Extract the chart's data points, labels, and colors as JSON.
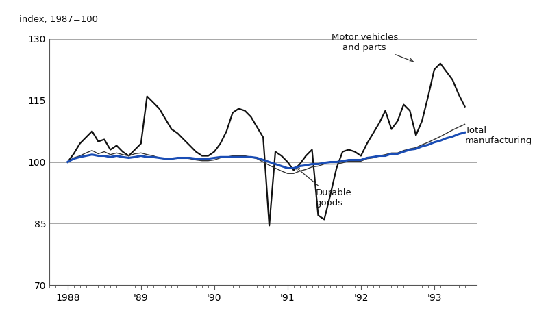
{
  "ylabel": "index, 1987=100",
  "ylim": [
    70,
    130
  ],
  "yticks": [
    70,
    85,
    100,
    115,
    130
  ],
  "xlim": [
    1987.75,
    1993.58
  ],
  "xtick_labels": [
    "1988",
    "'89",
    "'90",
    "'91",
    "'92",
    "'93"
  ],
  "xtick_positions": [
    1988,
    1989,
    1990,
    1991,
    1992,
    1993
  ],
  "background_color": "#ffffff",
  "total_mfg_color": "#1a4db5",
  "durable_color": "#333333",
  "motor_color": "#111111",
  "total_mfg_linewidth": 2.2,
  "durable_linewidth": 1.0,
  "motor_linewidth": 1.6,
  "total_manufacturing": {
    "t": [
      1988.0,
      1988.083,
      1988.167,
      1988.25,
      1988.333,
      1988.417,
      1988.5,
      1988.583,
      1988.667,
      1988.75,
      1988.833,
      1988.917,
      1989.0,
      1989.083,
      1989.167,
      1989.25,
      1989.333,
      1989.417,
      1989.5,
      1989.583,
      1989.667,
      1989.75,
      1989.833,
      1989.917,
      1990.0,
      1990.083,
      1990.167,
      1990.25,
      1990.333,
      1990.417,
      1990.5,
      1990.583,
      1990.667,
      1990.75,
      1990.833,
      1990.917,
      1991.0,
      1991.083,
      1991.167,
      1991.25,
      1991.333,
      1991.417,
      1991.5,
      1991.583,
      1991.667,
      1991.75,
      1991.833,
      1991.917,
      1992.0,
      1992.083,
      1992.167,
      1992.25,
      1992.333,
      1992.417,
      1992.5,
      1992.583,
      1992.667,
      1992.75,
      1992.833,
      1992.917,
      1993.0,
      1993.083,
      1993.167,
      1993.25,
      1993.333,
      1993.417
    ],
    "v": [
      100.0,
      100.8,
      101.2,
      101.5,
      101.8,
      101.5,
      101.5,
      101.2,
      101.5,
      101.2,
      101.0,
      101.2,
      101.5,
      101.2,
      101.2,
      101.0,
      100.8,
      100.8,
      101.0,
      101.0,
      101.0,
      100.8,
      100.8,
      100.8,
      101.0,
      101.2,
      101.2,
      101.2,
      101.2,
      101.2,
      101.2,
      101.0,
      100.5,
      100.0,
      99.5,
      99.0,
      98.5,
      98.5,
      99.0,
      99.2,
      99.5,
      99.5,
      99.8,
      100.0,
      100.0,
      100.2,
      100.5,
      100.5,
      100.5,
      101.0,
      101.2,
      101.5,
      101.5,
      102.0,
      102.0,
      102.5,
      103.0,
      103.2,
      103.8,
      104.2,
      104.8,
      105.2,
      105.8,
      106.2,
      106.8,
      107.2
    ]
  },
  "durable_goods": {
    "t": [
      1988.0,
      1988.083,
      1988.167,
      1988.25,
      1988.333,
      1988.417,
      1988.5,
      1988.583,
      1988.667,
      1988.75,
      1988.833,
      1988.917,
      1989.0,
      1989.083,
      1989.167,
      1989.25,
      1989.333,
      1989.417,
      1989.5,
      1989.583,
      1989.667,
      1989.75,
      1989.833,
      1989.917,
      1990.0,
      1990.083,
      1990.167,
      1990.25,
      1990.333,
      1990.417,
      1990.5,
      1990.583,
      1990.667,
      1990.75,
      1990.833,
      1990.917,
      1991.0,
      1991.083,
      1991.167,
      1991.25,
      1991.333,
      1991.417,
      1991.5,
      1991.583,
      1991.667,
      1991.75,
      1991.833,
      1991.917,
      1992.0,
      1992.083,
      1992.167,
      1992.25,
      1992.333,
      1992.417,
      1992.5,
      1992.583,
      1992.667,
      1992.75,
      1992.833,
      1992.917,
      1993.0,
      1993.083,
      1993.167,
      1993.25,
      1993.333,
      1993.417
    ],
    "v": [
      100.0,
      101.0,
      101.5,
      102.2,
      102.8,
      102.0,
      102.5,
      101.8,
      102.2,
      101.8,
      101.5,
      102.0,
      102.2,
      101.8,
      101.5,
      101.0,
      100.7,
      100.7,
      101.0,
      101.0,
      100.8,
      100.5,
      100.3,
      100.3,
      100.5,
      101.0,
      101.2,
      101.5,
      101.5,
      101.5,
      101.2,
      100.8,
      100.0,
      99.2,
      98.5,
      97.8,
      97.2,
      97.2,
      97.8,
      98.2,
      98.8,
      99.0,
      99.5,
      99.5,
      99.5,
      99.8,
      100.2,
      100.2,
      100.2,
      100.8,
      101.0,
      101.5,
      101.8,
      102.2,
      102.2,
      102.8,
      103.2,
      103.5,
      104.2,
      104.8,
      105.5,
      106.2,
      107.0,
      107.8,
      108.5,
      109.2
    ]
  },
  "motor_vehicles": {
    "t": [
      1988.0,
      1988.083,
      1988.167,
      1988.25,
      1988.333,
      1988.417,
      1988.5,
      1988.583,
      1988.667,
      1988.75,
      1988.833,
      1988.917,
      1989.0,
      1989.083,
      1989.167,
      1989.25,
      1989.333,
      1989.417,
      1989.5,
      1989.583,
      1989.667,
      1989.75,
      1989.833,
      1989.917,
      1990.0,
      1990.083,
      1990.167,
      1990.25,
      1990.333,
      1990.417,
      1990.5,
      1990.583,
      1990.667,
      1990.75,
      1990.833,
      1990.917,
      1991.0,
      1991.083,
      1991.167,
      1991.25,
      1991.333,
      1991.417,
      1991.5,
      1991.583,
      1991.667,
      1991.75,
      1991.833,
      1991.917,
      1992.0,
      1992.083,
      1992.167,
      1992.25,
      1992.333,
      1992.417,
      1992.5,
      1992.583,
      1992.667,
      1992.75,
      1992.833,
      1992.917,
      1993.0,
      1993.083,
      1993.167,
      1993.25,
      1993.333,
      1993.417
    ],
    "v": [
      100.0,
      102.0,
      104.5,
      106.0,
      107.5,
      105.0,
      105.5,
      103.0,
      104.0,
      102.5,
      101.5,
      103.0,
      104.5,
      116.0,
      114.5,
      113.0,
      110.5,
      108.0,
      107.0,
      105.5,
      104.0,
      102.5,
      101.5,
      101.5,
      102.5,
      104.5,
      107.5,
      112.0,
      113.0,
      112.5,
      111.0,
      108.5,
      106.0,
      84.5,
      102.5,
      101.5,
      100.0,
      98.0,
      99.5,
      101.5,
      103.0,
      87.0,
      86.0,
      92.0,
      98.5,
      102.5,
      103.0,
      102.5,
      101.5,
      104.5,
      107.0,
      109.5,
      112.5,
      108.0,
      110.0,
      114.0,
      112.5,
      106.5,
      110.0,
      116.0,
      122.5,
      124.0,
      122.0,
      120.0,
      116.5,
      113.5
    ]
  }
}
